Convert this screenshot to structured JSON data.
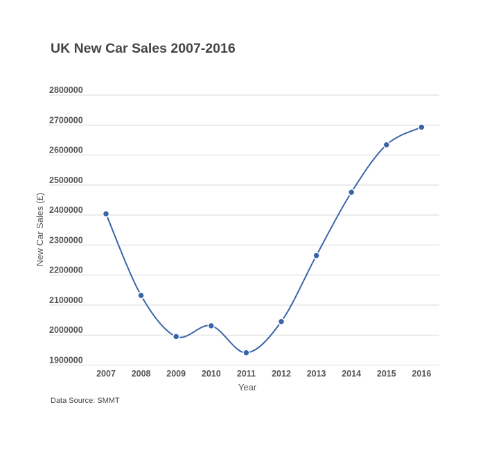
{
  "title": "UK New Car Sales 2007-2016",
  "source_note": "Data Source: SMMT",
  "colors": {
    "line": "#3b64a8",
    "point": "#3b64a8",
    "grid": "#d9d9d9",
    "title": "#444444",
    "tick_text": "#555555"
  },
  "chart_data": {
    "type": "line",
    "title": "UK New Car Sales 2007-2016",
    "xlabel": "Year",
    "ylabel": "New Car Sales (£)",
    "categories": [
      "2007",
      "2008",
      "2009",
      "2010",
      "2011",
      "2012",
      "2013",
      "2014",
      "2015",
      "2016"
    ],
    "series": [
      {
        "name": "New Car Sales",
        "values": [
          2404000,
          2132000,
          1995000,
          2031000,
          1941000,
          2045000,
          2265000,
          2476000,
          2634000,
          2693000
        ]
      }
    ],
    "ylim": [
      1900000,
      2800000
    ],
    "yticks": [
      "2800000",
      "2700000",
      "2600000",
      "2500000",
      "2400000",
      "2300000",
      "2200000",
      "2100000",
      "2000000",
      "1900000"
    ],
    "grid": true,
    "smooth": true,
    "markers": true,
    "legend": "none",
    "annotation": "Data Source: SMMT"
  }
}
